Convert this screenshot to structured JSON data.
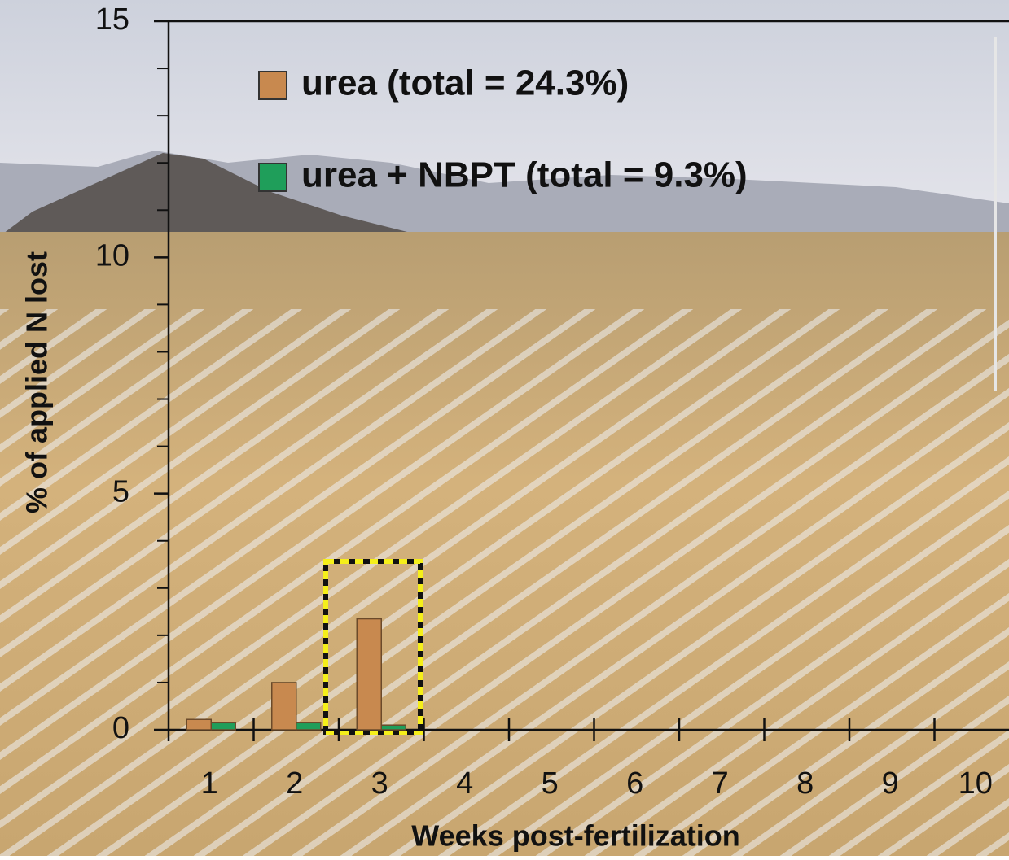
{
  "chart_data": {
    "type": "bar",
    "ylabel": "% of applied N lost",
    "xlabel": "Weeks post-fertilization",
    "categories": [
      "1",
      "2",
      "3",
      "4",
      "5",
      "6",
      "7",
      "8",
      "9",
      "10"
    ],
    "series": [
      {
        "name": "urea (total = 24.3%)",
        "color": "#c8894f",
        "values": [
          0.22,
          1.0,
          2.35,
          null,
          null,
          null,
          null,
          null,
          null,
          null
        ]
      },
      {
        "name": "urea + NBPT (total = 9.3%)",
        "color": "#1f9e5a",
        "values": [
          0.15,
          0.15,
          0.1,
          null,
          null,
          null,
          null,
          null,
          null,
          null
        ]
      }
    ],
    "ylim": [
      0,
      15
    ],
    "yticks": [
      0,
      5,
      10,
      15
    ]
  }
}
